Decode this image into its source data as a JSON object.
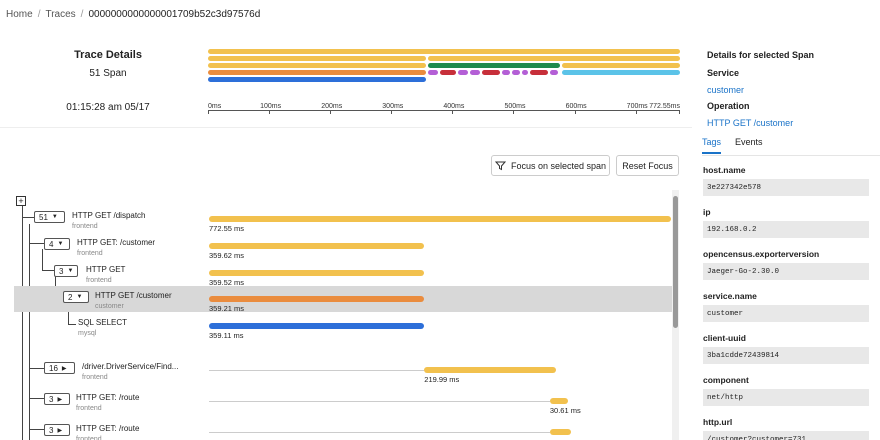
{
  "breadcrumb": {
    "home": "Home",
    "traces": "Traces",
    "trace_id": "0000000000000001709b52c3d97576d"
  },
  "summary": {
    "title": "Trace Details",
    "span_count": "51 Span",
    "timestamp": "01:15:28 am 05/17"
  },
  "axis": {
    "ticks": [
      "0ms",
      "100ms",
      "200ms",
      "300ms",
      "400ms",
      "500ms",
      "600ms",
      "700ms",
      "772.55ms"
    ],
    "max_ms": 772.55
  },
  "colors": {
    "frontend": "#f2c14e",
    "customer": "#ea8c3e",
    "mysql": "#2d6fd9",
    "driver": "#1e8a4c",
    "redis": "#b45fd6",
    "redis_err": "#c72f3a",
    "route": "#5bc3e8"
  },
  "actions": {
    "focus_label": "Focus on selected span",
    "reset_label": "Reset Focus"
  },
  "spans": [
    {
      "count": "51",
      "operation": "HTTP GET /dispatch",
      "service": "frontend",
      "start_ms": 0,
      "duration_ms": 772.55,
      "duration_label": "772.55 ms",
      "color": "frontend"
    },
    {
      "count": "4",
      "operation": "HTTP GET: /customer",
      "service": "frontend",
      "start_ms": 0,
      "duration_ms": 359.62,
      "duration_label": "359.62 ms",
      "color": "frontend"
    },
    {
      "count": "3",
      "operation": "HTTP GET",
      "service": "frontend",
      "start_ms": 0,
      "duration_ms": 359.52,
      "duration_label": "359.52 ms",
      "color": "frontend"
    },
    {
      "count": "2",
      "operation": "HTTP GET /customer",
      "service": "customer",
      "start_ms": 0,
      "duration_ms": 359.21,
      "duration_label": "359.21 ms",
      "color": "customer",
      "selected": true
    },
    {
      "count": "",
      "operation": "SQL SELECT",
      "service": "mysql",
      "start_ms": 0,
      "duration_ms": 359.11,
      "duration_label": "359.11 ms",
      "color": "mysql"
    },
    {
      "count": "16",
      "operation": "/driver.DriverService/Find...",
      "service": "frontend",
      "start_ms": 360,
      "duration_ms": 219.99,
      "duration_label": "219.99 ms",
      "color": "frontend"
    },
    {
      "count": "3",
      "operation": "HTTP GET: /route",
      "service": "frontend",
      "start_ms": 570,
      "duration_ms": 30.61,
      "duration_label": "30.61 ms",
      "color": "frontend"
    },
    {
      "count": "3",
      "operation": "HTTP GET: /route",
      "service": "frontend",
      "start_ms": 570,
      "duration_ms": 36,
      "duration_label": "",
      "color": "frontend"
    }
  ],
  "details": {
    "header": "Details for selected Span",
    "service_label": "Service",
    "service_value": "customer",
    "operation_label": "Operation",
    "operation_value": "HTTP GET /customer",
    "tabs": [
      "Tags",
      "Events"
    ],
    "tags": [
      {
        "key": "host.name",
        "value": "3e227342e578"
      },
      {
        "key": "ip",
        "value": "192.168.0.2"
      },
      {
        "key": "opencensus.exporterversion",
        "value": "Jaeger-Go-2.30.0"
      },
      {
        "key": "service.name",
        "value": "customer"
      },
      {
        "key": "client-uuid",
        "value": "3ba1cdde72439814"
      },
      {
        "key": "component",
        "value": "net/http"
      },
      {
        "key": "http.url",
        "value": "/customer?customer=731"
      }
    ]
  }
}
